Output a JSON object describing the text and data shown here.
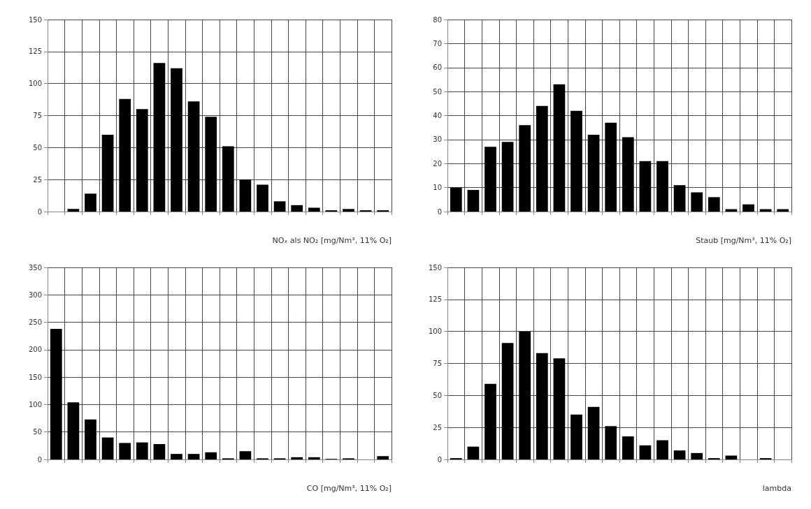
{
  "chart_data": [
    {
      "type": "bar",
      "xlabel": "NOₓ als NO₂ [mg/Nm³, 11% O₂]",
      "categories": [
        null,
        null,
        null,
        null,
        null,
        null,
        null,
        null,
        null,
        null,
        null,
        null,
        null,
        null,
        null,
        null,
        null,
        null,
        null,
        null
      ],
      "values": [
        0,
        2,
        14,
        60,
        88,
        80,
        116,
        112,
        86,
        74,
        51,
        25,
        21,
        8,
        5,
        3,
        1,
        2,
        1,
        1
      ],
      "color": "#000000",
      "ylim": [
        0,
        150
      ],
      "yticks": [
        0,
        25,
        50,
        75,
        100,
        125,
        150
      ],
      "grid": true
    },
    {
      "type": "bar",
      "xlabel": "Staub [mg/Nm³, 11% O₂]",
      "categories": [
        null,
        null,
        null,
        null,
        null,
        null,
        null,
        null,
        null,
        null,
        null,
        null,
        null,
        null,
        null,
        null,
        null,
        null,
        null,
        null
      ],
      "values": [
        10,
        9,
        27,
        29,
        36,
        44,
        53,
        42,
        32,
        37,
        31,
        21,
        21,
        11,
        8,
        6,
        1,
        3,
        1,
        1
      ],
      "color": "#000000",
      "ylim": [
        0,
        80
      ],
      "yticks": [
        0,
        10,
        20,
        30,
        40,
        50,
        60,
        70,
        80
      ],
      "grid": true
    },
    {
      "type": "bar",
      "xlabel": "CO [mg/Nm³, 11% O₂]",
      "categories": [
        null,
        null,
        null,
        null,
        null,
        null,
        null,
        null,
        null,
        null,
        null,
        null,
        null,
        null,
        null,
        null,
        null,
        null,
        null,
        null
      ],
      "values": [
        238,
        104,
        73,
        40,
        30,
        31,
        28,
        10,
        10,
        13,
        2,
        15,
        2,
        2,
        4,
        4,
        1,
        2,
        0,
        6
      ],
      "color": "#000000",
      "ylim": [
        0,
        350
      ],
      "yticks": [
        0,
        50,
        100,
        150,
        200,
        250,
        300,
        350
      ],
      "grid": true
    },
    {
      "type": "bar",
      "xlabel": "lambda",
      "categories": [
        null,
        null,
        null,
        null,
        null,
        null,
        null,
        null,
        null,
        null,
        null,
        null,
        null,
        null,
        null,
        null,
        null,
        null,
        null,
        null
      ],
      "values": [
        1,
        10,
        59,
        91,
        100,
        83,
        79,
        35,
        41,
        26,
        18,
        11,
        15,
        7,
        5,
        1,
        3,
        0,
        1,
        0
      ],
      "color": "#000000",
      "ylim": [
        0,
        150
      ],
      "yticks": [
        0,
        25,
        50,
        75,
        100,
        125,
        150
      ],
      "grid": true
    }
  ]
}
